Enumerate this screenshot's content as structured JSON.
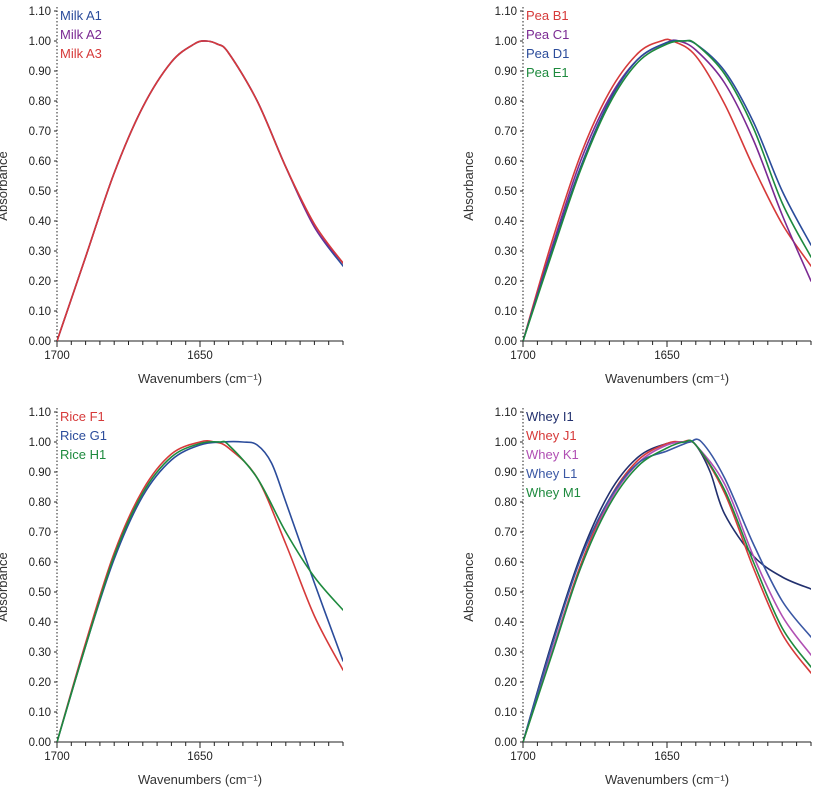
{
  "figure": {
    "axis_style": {
      "axis_color": "#222222",
      "dotted_left_axis": true
    }
  },
  "chart_data": [
    {
      "id": "milk",
      "type": "line",
      "xlabel": "Wavenumbers (cm⁻¹)",
      "ylabel": "Absorbance",
      "xlim": [
        1700,
        1600
      ],
      "ylim": [
        0.0,
        1.1
      ],
      "x_ticks": [
        1700,
        1650
      ],
      "y_ticks": [
        0.0,
        0.1,
        0.2,
        0.3,
        0.4,
        0.5,
        0.6,
        0.7,
        0.8,
        0.9,
        1.0,
        1.1
      ],
      "y_tick_labels": [
        "0.00",
        "0.10",
        "0.20",
        "0.30",
        "0.40",
        "0.50",
        "0.60",
        "0.70",
        "0.80",
        "0.90",
        "1.00",
        "1.10"
      ],
      "legend_position": "top-left",
      "series": [
        {
          "name": "Milk A1",
          "color": "#2b4c9b",
          "x": [
            1700,
            1690,
            1680,
            1670,
            1660,
            1652,
            1648,
            1644,
            1640,
            1630,
            1620,
            1610,
            1600
          ],
          "y": [
            0.0,
            0.28,
            0.56,
            0.78,
            0.93,
            0.99,
            1.0,
            0.99,
            0.96,
            0.8,
            0.58,
            0.38,
            0.25
          ]
        },
        {
          "name": "Milk A2",
          "color": "#7b2a93",
          "x": [
            1700,
            1690,
            1680,
            1670,
            1660,
            1652,
            1648,
            1644,
            1640,
            1630,
            1620,
            1610,
            1600
          ],
          "y": [
            0.0,
            0.28,
            0.56,
            0.78,
            0.93,
            0.99,
            1.0,
            0.99,
            0.96,
            0.8,
            0.58,
            0.38,
            0.26
          ]
        },
        {
          "name": "Milk A3",
          "color": "#d63a3a",
          "x": [
            1700,
            1690,
            1680,
            1670,
            1660,
            1652,
            1648,
            1644,
            1640,
            1630,
            1620,
            1610,
            1600
          ],
          "y": [
            0.0,
            0.28,
            0.56,
            0.78,
            0.93,
            0.99,
            1.0,
            0.99,
            0.96,
            0.8,
            0.58,
            0.39,
            0.26
          ]
        }
      ]
    },
    {
      "id": "pea",
      "type": "line",
      "xlabel": "Wavenumbers (cm⁻¹)",
      "ylabel": "Absorbance",
      "xlim": [
        1700,
        1600
      ],
      "ylim": [
        0.0,
        1.1
      ],
      "x_ticks": [
        1700,
        1650
      ],
      "y_ticks": [
        0.0,
        0.1,
        0.2,
        0.3,
        0.4,
        0.5,
        0.6,
        0.7,
        0.8,
        0.9,
        1.0,
        1.1
      ],
      "y_tick_labels": [
        "0.00",
        "0.10",
        "0.20",
        "0.30",
        "0.40",
        "0.50",
        "0.60",
        "0.70",
        "0.80",
        "0.90",
        "1.00",
        "1.10"
      ],
      "legend_position": "top-left",
      "series": [
        {
          "name": "Pea B1",
          "color": "#d63a3a",
          "x": [
            1700,
            1690,
            1680,
            1670,
            1660,
            1652,
            1648,
            1640,
            1630,
            1620,
            1610,
            1600
          ],
          "y": [
            0.0,
            0.33,
            0.62,
            0.83,
            0.96,
            1.0,
            1.0,
            0.95,
            0.79,
            0.58,
            0.39,
            0.25
          ]
        },
        {
          "name": "Pea C1",
          "color": "#7b2a93",
          "x": [
            1700,
            1690,
            1680,
            1670,
            1660,
            1650,
            1646,
            1640,
            1630,
            1620,
            1610,
            1600
          ],
          "y": [
            0.0,
            0.31,
            0.6,
            0.81,
            0.94,
            0.995,
            1.0,
            0.97,
            0.86,
            0.67,
            0.42,
            0.2
          ]
        },
        {
          "name": "Pea D1",
          "color": "#2b4c9b",
          "x": [
            1700,
            1690,
            1680,
            1670,
            1660,
            1650,
            1645,
            1640,
            1630,
            1620,
            1610,
            1600
          ],
          "y": [
            0.0,
            0.3,
            0.58,
            0.8,
            0.94,
            0.995,
            1.0,
            0.99,
            0.9,
            0.73,
            0.5,
            0.32
          ]
        },
        {
          "name": "Pea E1",
          "color": "#1e8a3e",
          "x": [
            1700,
            1690,
            1680,
            1670,
            1660,
            1650,
            1644,
            1640,
            1630,
            1620,
            1610,
            1600
          ],
          "y": [
            0.0,
            0.29,
            0.57,
            0.79,
            0.93,
            0.99,
            1.0,
            0.99,
            0.89,
            0.71,
            0.46,
            0.28
          ]
        }
      ]
    },
    {
      "id": "rice",
      "type": "line",
      "xlabel": "Wavenumbers (cm⁻¹)",
      "ylabel": "Absorbance",
      "xlim": [
        1700,
        1600
      ],
      "ylim": [
        0.0,
        1.1
      ],
      "x_ticks": [
        1700,
        1650
      ],
      "y_ticks": [
        0.0,
        0.1,
        0.2,
        0.3,
        0.4,
        0.5,
        0.6,
        0.7,
        0.8,
        0.9,
        1.0,
        1.1
      ],
      "y_tick_labels": [
        "0.00",
        "0.10",
        "0.20",
        "0.30",
        "0.40",
        "0.50",
        "0.60",
        "0.70",
        "0.80",
        "0.90",
        "1.00",
        "1.10"
      ],
      "legend_position": "top-left",
      "series": [
        {
          "name": "Rice F1",
          "color": "#d63a3a",
          "x": [
            1700,
            1690,
            1680,
            1670,
            1660,
            1650,
            1645,
            1640,
            1630,
            1620,
            1610,
            1600
          ],
          "y": [
            0.0,
            0.33,
            0.63,
            0.84,
            0.96,
            1.0,
            1.0,
            0.98,
            0.88,
            0.66,
            0.42,
            0.24
          ]
        },
        {
          "name": "Rice G1",
          "color": "#2b4c9b",
          "x": [
            1700,
            1690,
            1680,
            1670,
            1660,
            1650,
            1642,
            1635,
            1630,
            1625,
            1620,
            1610,
            1600
          ],
          "y": [
            0.0,
            0.32,
            0.61,
            0.82,
            0.94,
            0.99,
            1.0,
            1.0,
            0.99,
            0.93,
            0.8,
            0.53,
            0.27
          ]
        },
        {
          "name": "Rice H1",
          "color": "#1e8a3e",
          "x": [
            1700,
            1690,
            1680,
            1670,
            1660,
            1650,
            1643,
            1640,
            1630,
            1620,
            1610,
            1600
          ],
          "y": [
            0.0,
            0.32,
            0.62,
            0.83,
            0.95,
            0.995,
            1.0,
            0.99,
            0.88,
            0.7,
            0.55,
            0.44
          ]
        }
      ]
    },
    {
      "id": "whey",
      "type": "line",
      "xlabel": "Wavenumbers (cm⁻¹)",
      "ylabel": "Absorbance",
      "xlim": [
        1700,
        1600
      ],
      "ylim": [
        0.0,
        1.1
      ],
      "x_ticks": [
        1700,
        1650
      ],
      "y_ticks": [
        0.0,
        0.1,
        0.2,
        0.3,
        0.4,
        0.5,
        0.6,
        0.7,
        0.8,
        0.9,
        1.0,
        1.1
      ],
      "y_tick_labels": [
        "0.00",
        "0.10",
        "0.20",
        "0.30",
        "0.40",
        "0.50",
        "0.60",
        "0.70",
        "0.80",
        "0.90",
        "1.00",
        "1.10"
      ],
      "legend_position": "top-left",
      "series": [
        {
          "name": "Whey I1",
          "color": "#22306e",
          "x": [
            1700,
            1690,
            1680,
            1670,
            1660,
            1650,
            1643,
            1640,
            1635,
            1630,
            1620,
            1610,
            1600
          ],
          "y": [
            0.0,
            0.33,
            0.62,
            0.83,
            0.95,
            0.995,
            1.0,
            0.99,
            0.9,
            0.76,
            0.62,
            0.55,
            0.51
          ]
        },
        {
          "name": "Whey J1",
          "color": "#d63a3a",
          "x": [
            1700,
            1690,
            1680,
            1670,
            1660,
            1650,
            1645,
            1640,
            1630,
            1620,
            1610,
            1600
          ],
          "y": [
            0.0,
            0.3,
            0.59,
            0.81,
            0.94,
            0.995,
            1.0,
            0.99,
            0.83,
            0.58,
            0.36,
            0.23
          ]
        },
        {
          "name": "Whey K1",
          "color": "#b04fb3",
          "x": [
            1700,
            1690,
            1680,
            1670,
            1660,
            1650,
            1643,
            1640,
            1630,
            1620,
            1610,
            1600
          ],
          "y": [
            0.0,
            0.3,
            0.58,
            0.8,
            0.93,
            0.99,
            1.0,
            0.99,
            0.86,
            0.62,
            0.42,
            0.29
          ]
        },
        {
          "name": "Whey L1",
          "color": "#3a57a4",
          "x": [
            1700,
            1690,
            1680,
            1670,
            1660,
            1650,
            1645,
            1642,
            1638,
            1630,
            1620,
            1610,
            1600
          ],
          "y": [
            0.0,
            0.32,
            0.61,
            0.81,
            0.93,
            0.97,
            0.99,
            1.0,
            1.0,
            0.88,
            0.66,
            0.47,
            0.35
          ]
        },
        {
          "name": "Whey M1",
          "color": "#1e8a3e",
          "x": [
            1700,
            1690,
            1680,
            1670,
            1660,
            1650,
            1644,
            1640,
            1630,
            1620,
            1610,
            1600
          ],
          "y": [
            0.0,
            0.29,
            0.58,
            0.79,
            0.92,
            0.98,
            1.0,
            0.99,
            0.84,
            0.6,
            0.38,
            0.25
          ]
        }
      ]
    }
  ]
}
